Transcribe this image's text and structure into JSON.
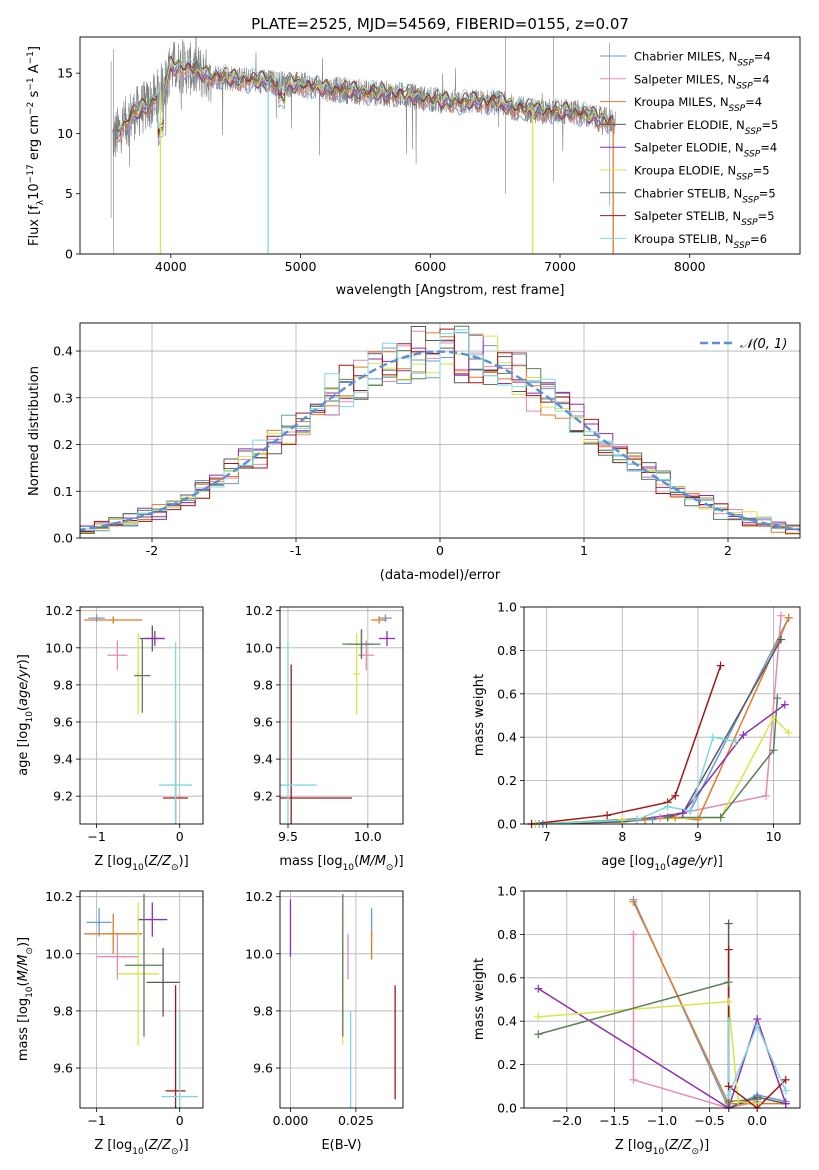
{
  "figure_title": "PLATE=2525, MJD=54569, FIBERID=0155, z=0.07",
  "colors": {
    "Chabrier MILES": "#6a9bd8",
    "Salpeter MILES": "#e88ab6",
    "Kroupa MILES": "#e07b2a",
    "Chabrier ELODIE": "#5a5a5a",
    "Salpeter ELODIE": "#8e2fb0",
    "Kroupa ELODIE": "#d8e64a",
    "Chabrier STELIB": "#5a7f5a",
    "Salpeter STELIB": "#a01818",
    "Kroupa STELIB": "#7fd8e0",
    "gaussian": "#5b8fd6",
    "data": "#808080"
  },
  "chart_data": [
    {
      "id": "spectrum",
      "type": "line",
      "title": "PLATE=2525, MJD=54569, FIBERID=0155, z=0.07",
      "xlabel": "wavelength [Angstrom, rest frame]",
      "ylabel": "Flux [f_λ10^-17 erg cm^-2 s^-1 A^-1]",
      "xlim": [
        3300,
        8850
      ],
      "ylim": [
        0,
        18
      ],
      "xticks": [
        4000,
        5000,
        6000,
        7000,
        8000
      ],
      "yticks": [
        0,
        5,
        10,
        15
      ],
      "legend": "top-right",
      "series": [
        {
          "name": "Chabrier MILES, N_SSP=4",
          "key": "Chabrier MILES"
        },
        {
          "name": "Salpeter MILES, N_SSP=4",
          "key": "Salpeter MILES"
        },
        {
          "name": "Kroupa MILES, N_SSP=4",
          "key": "Kroupa MILES"
        },
        {
          "name": "Chabrier ELODIE, N_SSP=5",
          "key": "Chabrier ELODIE"
        },
        {
          "name": "Salpeter ELODIE, N_SSP=4",
          "key": "Salpeter ELODIE"
        },
        {
          "name": "Kroupa ELODIE, N_SSP=5",
          "key": "Kroupa ELODIE"
        },
        {
          "name": "Chabrier STELIB, N_SSP=5",
          "key": "Chabrier STELIB"
        },
        {
          "name": "Salpeter STELIB, N_SSP=5",
          "key": "Salpeter STELIB"
        },
        {
          "name": "Kroupa STELIB, N_SSP=6",
          "key": "Kroupa STELIB"
        }
      ],
      "continuum": {
        "x": [
          3550,
          3700,
          3850,
          3950,
          4000,
          4100,
          4300,
          4500,
          4800,
          5000,
          5200,
          5500,
          5800,
          6000,
          6200,
          6500,
          6700,
          6900,
          7100,
          7300,
          7500
        ],
        "y": [
          9.5,
          11.5,
          12.5,
          14.0,
          15.5,
          15.5,
          14.8,
          14.5,
          14.2,
          14.0,
          13.7,
          13.4,
          13.2,
          12.8,
          12.6,
          12.6,
          12.0,
          11.8,
          11.8,
          11.2,
          10.8
        ]
      },
      "spikes_down": [
        {
          "x": 3920,
          "y": 0,
          "key": "Kroupa ELODIE"
        },
        {
          "x": 4750,
          "y": 0,
          "key": "Kroupa STELIB"
        },
        {
          "x": 6790,
          "y": 0,
          "key": "Kroupa ELODIE"
        },
        {
          "x": 7410,
          "y": 0,
          "key": "Kroupa MILES"
        }
      ]
    },
    {
      "id": "residuals",
      "type": "line",
      "xlabel": "(data-model)/error",
      "ylabel": "Normed distribution",
      "xlim": [
        -2.5,
        2.5
      ],
      "ylim": [
        0,
        0.46
      ],
      "xticks": [
        -2,
        -1,
        0,
        1,
        2
      ],
      "yticks": [
        0.0,
        0.1,
        0.2,
        0.3,
        0.4
      ],
      "legend": "top-right",
      "gaussian_label": "𝒩(0, 1)",
      "bin_width": 0.1
    },
    {
      "id": "age_vs_Z",
      "type": "scatter",
      "xlabel": "Z [log10(Z/Z⊙)]",
      "ylabel": "age [log10(age/yr)]",
      "xlim": [
        -1.2,
        0.28
      ],
      "ylim": [
        9.05,
        10.22
      ],
      "xticks": [
        -1,
        0
      ],
      "xticklabels": [
        "−1",
        "0"
      ],
      "yticks": [
        9.2,
        9.4,
        9.6,
        9.8,
        10.0,
        10.2
      ],
      "points": [
        {
          "key": "Chabrier MILES",
          "x": -1.0,
          "xerr": 0.1,
          "y": 10.16,
          "yerr": 0.02
        },
        {
          "key": "Salpeter MILES",
          "x": -0.75,
          "xerr": 0.12,
          "y": 9.96,
          "yerr": 0.08
        },
        {
          "key": "Kroupa MILES",
          "x": -0.8,
          "xerr": 0.35,
          "y": 10.15,
          "yerr": 0.02
        },
        {
          "key": "Chabrier ELODIE",
          "x": -0.33,
          "xerr": 0.15,
          "y": 10.05,
          "yerr": 0.07
        },
        {
          "key": "Salpeter ELODIE",
          "x": -0.3,
          "xerr": 0.12,
          "y": 10.05,
          "yerr": 0.04
        },
        {
          "key": "Kroupa ELODIE",
          "x": -0.5,
          "xerr": 0.02,
          "y": 9.86,
          "yerr": 0.22
        },
        {
          "key": "Chabrier STELIB",
          "x": -0.45,
          "xerr": 0.1,
          "y": 9.85,
          "yerr": 0.2
        },
        {
          "key": "Salpeter STELIB",
          "x": -0.05,
          "xerr": 0.15,
          "y": 9.19,
          "yerr": 0.42
        },
        {
          "key": "Kroupa STELIB",
          "x": -0.05,
          "xerr": 0.2,
          "y": 9.26,
          "yerr": 0.77
        }
      ]
    },
    {
      "id": "age_vs_mass",
      "type": "scatter",
      "xlabel": "mass [log10(M/M⊙)]",
      "ylabel": "",
      "xlim": [
        9.45,
        10.22
      ],
      "ylim": [
        9.05,
        10.22
      ],
      "xticks": [
        9.5,
        10.0
      ],
      "xticklabels": [
        "9.5",
        "10.0"
      ],
      "yticks": [
        9.2,
        9.4,
        9.6,
        9.8,
        10.0,
        10.2
      ],
      "points": [
        {
          "key": "Chabrier MILES",
          "x": 10.11,
          "xerr": 0.04,
          "y": 10.16,
          "yerr": 0.02
        },
        {
          "key": "Salpeter MILES",
          "x": 9.99,
          "xerr": 0.05,
          "y": 9.96,
          "yerr": 0.08
        },
        {
          "key": "Kroupa MILES",
          "x": 10.07,
          "xerr": 0.05,
          "y": 10.15,
          "yerr": 0.02
        },
        {
          "key": "Chabrier ELODIE",
          "x": 9.96,
          "xerr": 0.08,
          "y": 10.02,
          "yerr": 0.08
        },
        {
          "key": "Salpeter ELODIE",
          "x": 10.12,
          "xerr": 0.05,
          "y": 10.05,
          "yerr": 0.04
        },
        {
          "key": "Kroupa ELODIE",
          "x": 9.93,
          "xerr": 0.02,
          "y": 9.86,
          "yerr": 0.22
        },
        {
          "key": "Chabrier STELIB",
          "x": 9.96,
          "xerr": 0.12,
          "y": 10.02,
          "yerr": 0.07
        },
        {
          "key": "Salpeter STELIB",
          "x": 9.52,
          "xerr": 0.38,
          "y": 9.19,
          "yerr": 0.72
        },
        {
          "key": "Kroupa STELIB",
          "x": 9.5,
          "xerr": 0.18,
          "y": 9.26,
          "yerr": 0.77
        }
      ]
    },
    {
      "id": "mass_weight_vs_age",
      "type": "line",
      "xlabel": "age  [log10(age/yr)]",
      "ylabel": "mass weight",
      "xlim": [
        6.7,
        10.35
      ],
      "ylim": [
        0,
        1.0
      ],
      "xticks": [
        7,
        8,
        9,
        10
      ],
      "yticks": [
        0.0,
        0.2,
        0.4,
        0.6,
        0.8,
        1.0
      ],
      "series": [
        {
          "key": "Chabrier MILES",
          "x": [
            6.8,
            8.4,
            8.9,
            10.2
          ],
          "y": [
            0.0,
            0.02,
            0.06,
            0.95
          ]
        },
        {
          "key": "Salpeter MILES",
          "x": [
            6.9,
            8.5,
            9.9,
            10.1
          ],
          "y": [
            0.0,
            0.03,
            0.13,
            0.96
          ]
        },
        {
          "key": "Kroupa MILES",
          "x": [
            6.85,
            8.3,
            8.7,
            9.0,
            10.2
          ],
          "y": [
            0.0,
            0.02,
            0.03,
            0.02,
            0.95
          ]
        },
        {
          "key": "Chabrier ELODIE",
          "x": [
            6.9,
            8.0,
            8.6,
            8.8,
            10.1
          ],
          "y": [
            0.0,
            0.01,
            0.03,
            0.05,
            0.85
          ]
        },
        {
          "key": "Salpeter ELODIE",
          "x": [
            6.9,
            8.2,
            8.8,
            9.6,
            10.15
          ],
          "y": [
            0.0,
            0.02,
            0.05,
            0.41,
            0.55
          ]
        },
        {
          "key": "Kroupa ELODIE",
          "x": [
            6.85,
            8.0,
            9.3,
            10.0,
            10.2
          ],
          "y": [
            0.0,
            0.02,
            0.03,
            0.49,
            0.42
          ]
        },
        {
          "key": "Chabrier STELIB",
          "x": [
            6.95,
            8.6,
            9.3,
            10.0,
            10.05
          ],
          "y": [
            0.0,
            0.03,
            0.03,
            0.34,
            0.58
          ]
        },
        {
          "key": "Salpeter STELIB",
          "x": [
            6.8,
            7.8,
            8.6,
            8.7,
            9.3
          ],
          "y": [
            0.0,
            0.04,
            0.1,
            0.13,
            0.73
          ]
        },
        {
          "key": "Kroupa STELIB",
          "x": [
            6.9,
            8.2,
            8.6,
            8.9,
            9.2,
            9.5
          ],
          "y": [
            0.0,
            0.02,
            0.08,
            0.06,
            0.4,
            0.38
          ]
        }
      ]
    },
    {
      "id": "mass_vs_Z",
      "type": "scatter",
      "xlabel": "Z [log10(Z/Z⊙)]",
      "ylabel": "mass [log10(M/M⊙)]",
      "xlim": [
        -1.2,
        0.28
      ],
      "ylim": [
        9.46,
        10.22
      ],
      "xticks": [
        -1,
        0
      ],
      "xticklabels": [
        "−1",
        "0"
      ],
      "yticks": [
        9.6,
        9.8,
        10.0,
        10.2
      ],
      "points": [
        {
          "key": "Chabrier MILES",
          "x": -0.97,
          "xerr": 0.15,
          "y": 10.11,
          "yerr": 0.05
        },
        {
          "key": "Salpeter MILES",
          "x": -0.75,
          "xerr": 0.25,
          "y": 9.99,
          "yerr": 0.08
        },
        {
          "key": "Kroupa MILES",
          "x": -0.8,
          "xerr": 0.35,
          "y": 10.07,
          "yerr": 0.07
        },
        {
          "key": "Chabrier ELODIE",
          "x": -0.2,
          "xerr": 0.2,
          "y": 9.9,
          "yerr": 0.12
        },
        {
          "key": "Salpeter ELODIE",
          "x": -0.33,
          "xerr": 0.18,
          "y": 10.12,
          "yerr": 0.06
        },
        {
          "key": "Kroupa ELODIE",
          "x": -0.5,
          "xerr": 0.25,
          "y": 9.93,
          "yerr": 0.25
        },
        {
          "key": "Chabrier STELIB",
          "x": -0.43,
          "xerr": 0.23,
          "y": 9.96,
          "yerr": 0.25
        },
        {
          "key": "Salpeter STELIB",
          "x": -0.05,
          "xerr": 0.12,
          "y": 9.52,
          "yerr": 0.37
        },
        {
          "key": "Kroupa STELIB",
          "x": 0.0,
          "xerr": 0.22,
          "y": 9.5,
          "yerr": 0.3
        }
      ]
    },
    {
      "id": "mass_vs_ebv",
      "type": "scatter",
      "xlabel": "E(B-V)",
      "ylabel": "",
      "xlim": [
        -0.004,
        0.043
      ],
      "ylim": [
        9.46,
        10.22
      ],
      "xticks": [
        0.0,
        0.025
      ],
      "xticklabels": [
        "0.000",
        "0.025"
      ],
      "yticks": [
        9.6,
        9.8,
        10.0,
        10.2
      ],
      "points": [
        {
          "key": "Chabrier MILES",
          "x": 0.031,
          "xerr": 0.0,
          "y": 10.11,
          "yerr": 0.05
        },
        {
          "key": "Salpeter MILES",
          "x": 0.022,
          "xerr": 0.0,
          "y": 9.99,
          "yerr": 0.08
        },
        {
          "key": "Kroupa MILES",
          "x": 0.031,
          "xerr": 0.0,
          "y": 10.03,
          "yerr": 0.05
        },
        {
          "key": "Chabrier ELODIE",
          "x": 0.02,
          "xerr": 0.0,
          "y": 9.9,
          "yerr": 0.12
        },
        {
          "key": "Salpeter ELODIE",
          "x": 0.0,
          "xerr": 0.0,
          "y": 10.09,
          "yerr": 0.1
        },
        {
          "key": "Kroupa ELODIE",
          "x": 0.02,
          "xerr": 0.0,
          "y": 9.93,
          "yerr": 0.25
        },
        {
          "key": "Chabrier STELIB",
          "x": 0.02,
          "xerr": 0.0,
          "y": 9.96,
          "yerr": 0.25
        },
        {
          "key": "Salpeter STELIB",
          "x": 0.04,
          "xerr": 0.0,
          "y": 9.69,
          "yerr": 0.2
        },
        {
          "key": "Kroupa STELIB",
          "x": 0.023,
          "xerr": 0.0,
          "y": 9.63,
          "yerr": 0.17
        }
      ]
    },
    {
      "id": "mass_weight_vs_Z",
      "type": "line",
      "xlabel": "Z [log10(Z/Z⊙)]",
      "ylabel": "mass weight",
      "xlim": [
        -2.45,
        0.45
      ],
      "ylim": [
        0,
        1.0
      ],
      "xticks": [
        -2.0,
        -1.5,
        -1.0,
        -0.5,
        0.0
      ],
      "xticklabels": [
        "−2.0",
        "−1.5",
        "−1.0",
        "−0.5",
        "0.0"
      ],
      "yticks": [
        0.0,
        0.2,
        0.4,
        0.6,
        0.8,
        1.0
      ],
      "series": [
        {
          "key": "Chabrier MILES",
          "x": [
            -1.3,
            -0.3,
            0.0,
            0.3
          ],
          "y": [
            0.96,
            0.0,
            0.06,
            0.03
          ]
        },
        {
          "key": "Salpeter MILES",
          "x": [
            -1.3,
            -1.3,
            -0.3,
            0.0
          ],
          "y": [
            0.8,
            0.13,
            0.0,
            0.03
          ]
        },
        {
          "key": "Kroupa MILES",
          "x": [
            -1.3,
            -0.3,
            0.0,
            0.3
          ],
          "y": [
            0.95,
            0.02,
            0.02,
            0.02
          ]
        },
        {
          "key": "Chabrier ELODIE",
          "x": [
            -0.3,
            -0.3,
            0.0,
            0.3
          ],
          "y": [
            0.85,
            0.0,
            0.05,
            0.02
          ]
        },
        {
          "key": "Salpeter ELODIE",
          "x": [
            -2.3,
            -0.3,
            0.0,
            0.3
          ],
          "y": [
            0.55,
            0.0,
            0.41,
            0.02
          ]
        },
        {
          "key": "Kroupa ELODIE",
          "x": [
            -2.3,
            -0.3,
            -0.2,
            0.0
          ],
          "y": [
            0.42,
            0.49,
            0.03,
            0.02
          ]
        },
        {
          "key": "Chabrier STELIB",
          "x": [
            -2.3,
            -0.3,
            -0.3,
            0.0
          ],
          "y": [
            0.34,
            0.58,
            0.03,
            0.04
          ]
        },
        {
          "key": "Salpeter STELIB",
          "x": [
            -0.3,
            -0.3,
            0.0,
            0.3
          ],
          "y": [
            0.73,
            0.1,
            0.0,
            0.13
          ]
        },
        {
          "key": "Kroupa STELIB",
          "x": [
            -0.3,
            -0.3,
            0.0,
            0.3
          ],
          "y": [
            0.4,
            0.06,
            0.38,
            0.08
          ]
        }
      ]
    }
  ]
}
